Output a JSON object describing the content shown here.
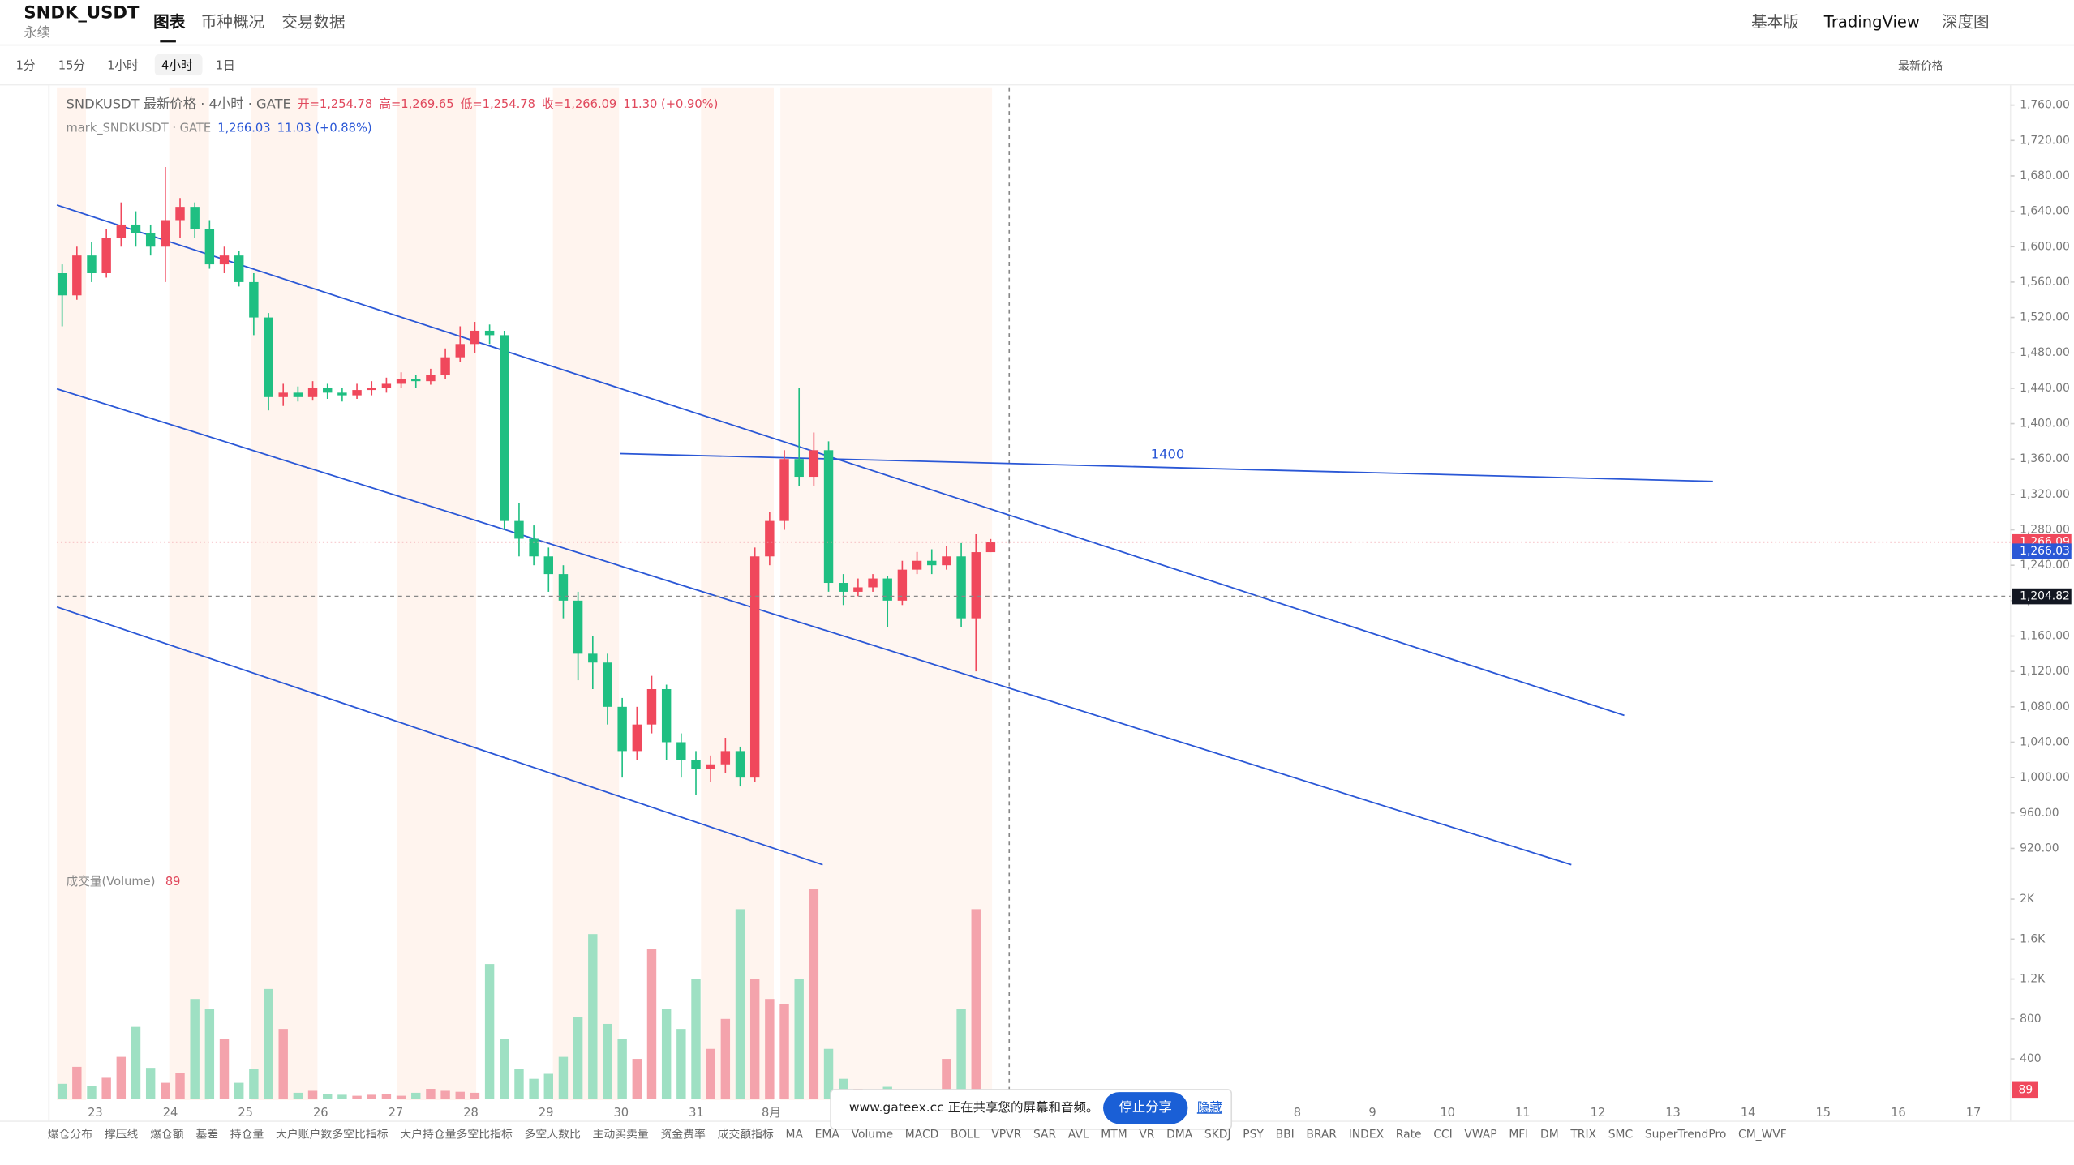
{
  "header": {
    "symbol": "SNDK_USDT",
    "contract": "永续",
    "tabs": [
      "图表",
      "币种概况",
      "交易数据"
    ],
    "right": [
      "基本版",
      "TradingView",
      "深度图"
    ]
  },
  "toolbar": {
    "intervals": [
      "1分",
      "15分",
      "1小时",
      "4小时",
      "1日"
    ],
    "price_mode": "最新价格"
  },
  "legend": {
    "line1": {
      "name": "SNDKUSDT 最新价格 · 4小时 · GATE",
      "open": "开=1,254.78",
      "high": "高=1,269.65",
      "low": "低=1,254.78",
      "close": "收=1,266.09",
      "change": "11.30 (+0.90%)"
    },
    "line2": {
      "name": "mark_SNDKUSDT · GATE",
      "price": "1,266.03",
      "change": "11.03 (+0.88%)"
    }
  },
  "drawing_label": "1400",
  "chart_data": {
    "type": "candlestick",
    "ohlc": [
      [
        1570,
        1580,
        1510,
        1545
      ],
      [
        1545,
        1600,
        1540,
        1590
      ],
      [
        1590,
        1605,
        1560,
        1570
      ],
      [
        1570,
        1620,
        1565,
        1610
      ],
      [
        1610,
        1650,
        1600,
        1625
      ],
      [
        1625,
        1640,
        1600,
        1615
      ],
      [
        1615,
        1625,
        1590,
        1600
      ],
      [
        1600,
        1690,
        1560,
        1630
      ],
      [
        1630,
        1655,
        1610,
        1645
      ],
      [
        1645,
        1650,
        1610,
        1620
      ],
      [
        1620,
        1630,
        1575,
        1580
      ],
      [
        1580,
        1600,
        1570,
        1590
      ],
      [
        1590,
        1595,
        1555,
        1560
      ],
      [
        1560,
        1570,
        1500,
        1520
      ],
      [
        1520,
        1525,
        1415,
        1430
      ],
      [
        1430,
        1445,
        1420,
        1435
      ],
      [
        1435,
        1442,
        1425,
        1430
      ],
      [
        1430,
        1448,
        1426,
        1440
      ],
      [
        1440,
        1445,
        1428,
        1435
      ],
      [
        1435,
        1440,
        1425,
        1432
      ],
      [
        1432,
        1445,
        1428,
        1438
      ],
      [
        1438,
        1448,
        1432,
        1440
      ],
      [
        1440,
        1452,
        1435,
        1445
      ],
      [
        1445,
        1458,
        1440,
        1450
      ],
      [
        1450,
        1455,
        1440,
        1448
      ],
      [
        1448,
        1462,
        1444,
        1455
      ],
      [
        1455,
        1485,
        1450,
        1475
      ],
      [
        1475,
        1510,
        1470,
        1490
      ],
      [
        1490,
        1515,
        1480,
        1505
      ],
      [
        1505,
        1512,
        1490,
        1500
      ],
      [
        1500,
        1505,
        1280,
        1290
      ],
      [
        1290,
        1310,
        1250,
        1270
      ],
      [
        1270,
        1285,
        1240,
        1250
      ],
      [
        1250,
        1260,
        1210,
        1230
      ],
      [
        1230,
        1240,
        1180,
        1200
      ],
      [
        1200,
        1210,
        1110,
        1140
      ],
      [
        1140,
        1160,
        1100,
        1130
      ],
      [
        1130,
        1140,
        1060,
        1080
      ],
      [
        1080,
        1090,
        1000,
        1030
      ],
      [
        1030,
        1080,
        1020,
        1060
      ],
      [
        1060,
        1115,
        1050,
        1100
      ],
      [
        1100,
        1105,
        1020,
        1040
      ],
      [
        1040,
        1050,
        1000,
        1020
      ],
      [
        1020,
        1030,
        980,
        1010
      ],
      [
        1010,
        1025,
        995,
        1015
      ],
      [
        1015,
        1045,
        1005,
        1030
      ],
      [
        1030,
        1035,
        990,
        1000
      ],
      [
        1000,
        1260,
        995,
        1250
      ],
      [
        1250,
        1300,
        1240,
        1290
      ],
      [
        1290,
        1370,
        1280,
        1360
      ],
      [
        1360,
        1440,
        1330,
        1340
      ],
      [
        1340,
        1390,
        1330,
        1370
      ],
      [
        1370,
        1380,
        1210,
        1220
      ],
      [
        1220,
        1230,
        1195,
        1210
      ],
      [
        1210,
        1225,
        1205,
        1215
      ],
      [
        1215,
        1230,
        1210,
        1225
      ],
      [
        1225,
        1228,
        1170,
        1200
      ],
      [
        1200,
        1245,
        1195,
        1235
      ],
      [
        1235,
        1255,
        1230,
        1245
      ],
      [
        1245,
        1258,
        1230,
        1240
      ],
      [
        1240,
        1262,
        1235,
        1250
      ],
      [
        1250,
        1265,
        1170,
        1180
      ],
      [
        1180,
        1275,
        1120,
        1254.78
      ],
      [
        1254.78,
        1269.65,
        1254.78,
        1266.09
      ]
    ],
    "up_color": "#f0485c",
    "down_color": "#1fbf82",
    "ylim": [
      900,
      1780
    ],
    "yticks": [
      {
        "value": 920,
        "label": "920.00"
      },
      {
        "value": 960,
        "label": "960.00"
      },
      {
        "value": 1000,
        "label": "1,000.00"
      },
      {
        "value": 1040,
        "label": "1,040.00"
      },
      {
        "value": 1080,
        "label": "1,080.00"
      },
      {
        "value": 1120,
        "label": "1,120.00"
      },
      {
        "value": 1160,
        "label": "1,160.00"
      },
      {
        "value": 1200,
        "label": "1,200.00"
      },
      {
        "value": 1240,
        "label": "1,240.00"
      },
      {
        "value": 1280,
        "label": "1,280.00"
      },
      {
        "value": 1320,
        "label": "1,320.00"
      },
      {
        "value": 1360,
        "label": "1,360.00"
      },
      {
        "value": 1400,
        "label": "1,400.00"
      },
      {
        "value": 1440,
        "label": "1,440.00"
      },
      {
        "value": 1480,
        "label": "1,480.00"
      },
      {
        "value": 1520,
        "label": "1,520.00"
      },
      {
        "value": 1560,
        "label": "1,560.00"
      },
      {
        "value": 1600,
        "label": "1,600.00"
      },
      {
        "value": 1640,
        "label": "1,640.00"
      },
      {
        "value": 1680,
        "label": "1,680.00"
      },
      {
        "value": 1720,
        "label": "1,720.00"
      },
      {
        "value": 1760,
        "label": "1,760.00"
      }
    ],
    "last_price": {
      "value": 1266.09,
      "label": "1,266.09"
    },
    "mark_price": {
      "value": 1266.03,
      "label": "1,266.03"
    },
    "crosshair_price": {
      "value": 1204.82,
      "label": "1,204.82"
    },
    "xticks": [
      "23",
      "24",
      "25",
      "26",
      "27",
      "28",
      "29",
      "30",
      "31",
      "8月",
      "8",
      "9",
      "10",
      "11",
      "12",
      "13",
      "14",
      "15",
      "16",
      "17"
    ],
    "volume": {
      "title": "成交量(Volume)",
      "values": [
        150,
        320,
        130,
        210,
        420,
        720,
        310,
        160,
        260,
        1000,
        900,
        600,
        160,
        300,
        1100,
        700,
        60,
        80,
        50,
        40,
        30,
        40,
        50,
        30,
        60,
        100,
        80,
        70,
        60,
        1350,
        600,
        300,
        200,
        250,
        420,
        820,
        1650,
        750,
        600,
        400,
        1500,
        900,
        700,
        1200,
        500,
        800,
        1900,
        1200,
        1000,
        950,
        1200,
        2100,
        500,
        200,
        100,
        50,
        120,
        60,
        50,
        60,
        400,
        900,
        1900,
        89
      ],
      "ylim": [
        0,
        2265
      ],
      "yticks": [
        400,
        800,
        {
          "value": 1200,
          "label": "1.2K"
        },
        {
          "value": 1600,
          "label": "1.6K"
        },
        {
          "value": 2000,
          "label": "2K"
        }
      ]
    }
  },
  "bottom_bar": [
    "爆仓分布",
    "撑压线",
    "爆仓额",
    "基差",
    "持仓量",
    "大户账户数多空比指标",
    "大户持仓量多空比指标",
    "多空人数比",
    "主动买卖量",
    "资金费率",
    "成交额指标",
    "MA",
    "EMA",
    "Volume",
    "MACD",
    "BOLL",
    "VPVR",
    "SAR",
    "AVL",
    "MTM",
    "VR",
    "DMA",
    "SKDJ",
    "PSY",
    "BBI",
    "BRAR",
    "INDEX",
    "Rate",
    "CCI",
    "VWAP",
    "MFI",
    "DM",
    "TRIX",
    "SMC",
    "SuperTrendPro",
    "CM_WVF"
  ],
  "share_banner": {
    "text": "www.gateex.cc 正在共享您的屏幕和音频。",
    "stop": "停止分享",
    "hide": "隐藏"
  }
}
